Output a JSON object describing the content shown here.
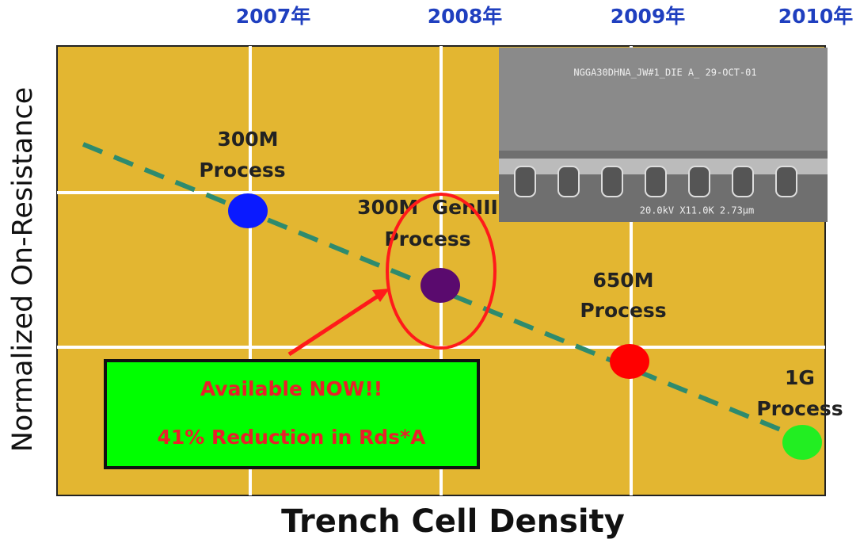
{
  "years": [
    "2007年",
    "2008年",
    "2009年",
    "2010年"
  ],
  "y_axis_label": "Normalized On-Resistance",
  "x_axis_label": "Trench Cell Density",
  "points": [
    {
      "label": [
        "300M",
        "Process"
      ],
      "color": "#0a1aff"
    },
    {
      "label": [
        "300M  GenIII",
        "Process"
      ],
      "color": "#5a0a6e"
    },
    {
      "label": [
        "650M",
        "Process"
      ],
      "color": "#ff0000"
    },
    {
      "label": [
        "1G",
        "Process"
      ],
      "color": "#22ee22"
    }
  ],
  "callout": [
    "Available NOW!!",
    "41% Reduction in Rds*A"
  ],
  "image_texts": [
    "NGGA30DHNA_JW#1_DIE A_ 29-OCT-01",
    "20.0kV X11.0K 2.73µm"
  ]
}
